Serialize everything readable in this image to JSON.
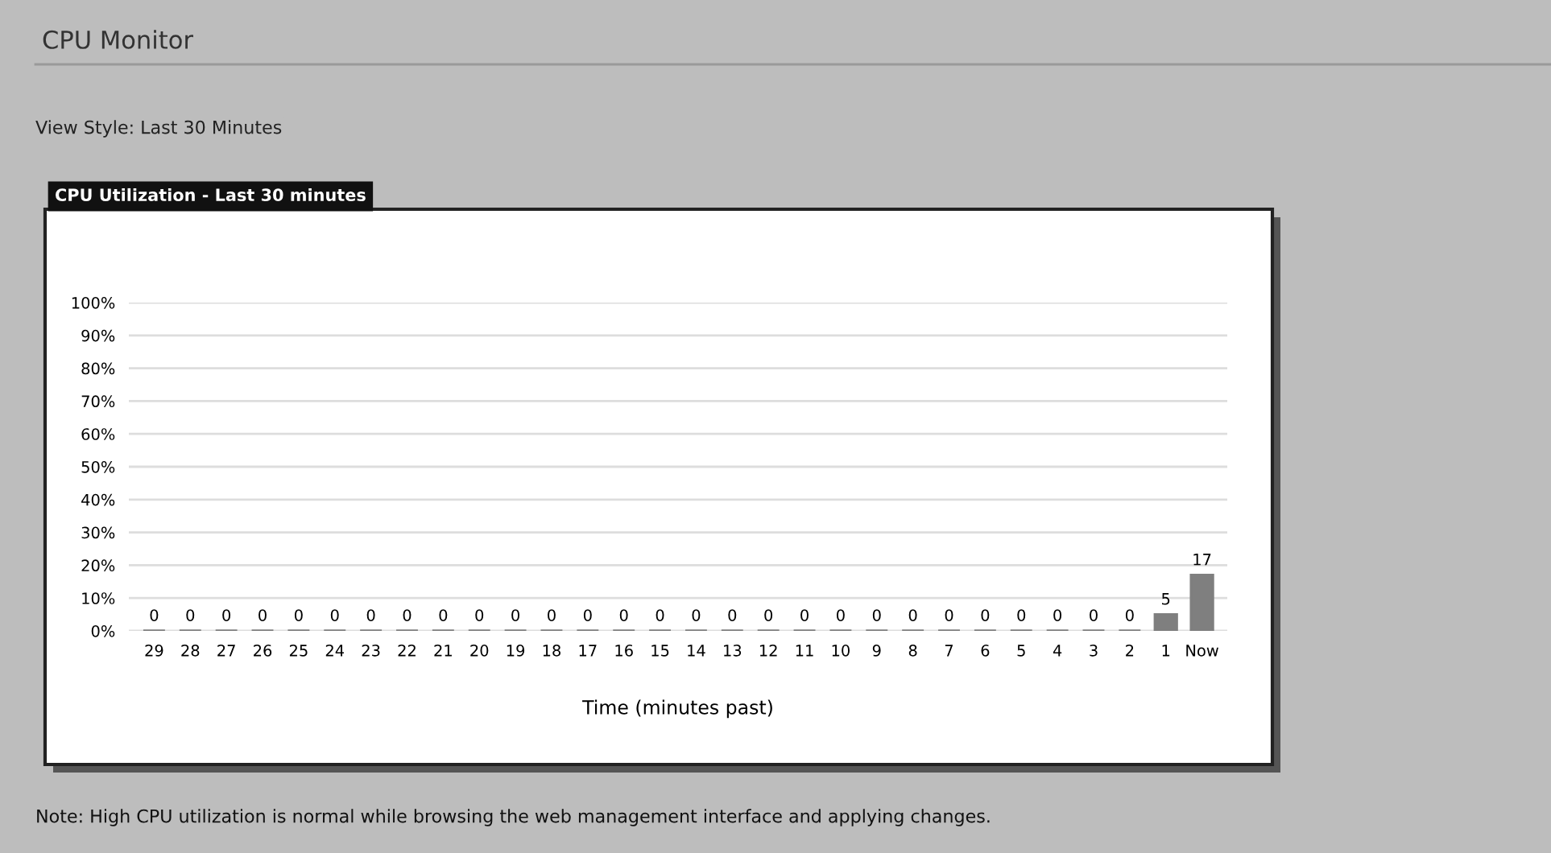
{
  "chart_data": {
    "type": "bar",
    "title": "CPU Monitor",
    "subtitle": "CPU Utilization - Last 30 minutes",
    "xlabel": "Time (minutes past)",
    "annotations": [
      "View Style: Last 30 Minutes",
      "Note: High CPU utilization is normal while browsing the web management interface and applying changes."
    ],
    "categories": [
      "29",
      "28",
      "27",
      "26",
      "25",
      "24",
      "23",
      "22",
      "21",
      "20",
      "19",
      "18",
      "17",
      "16",
      "15",
      "14",
      "13",
      "12",
      "11",
      "10",
      "9",
      "8",
      "7",
      "6",
      "5",
      "4",
      "3",
      "2",
      "1",
      "Now"
    ],
    "values": [
      0,
      0,
      0,
      0,
      0,
      0,
      0,
      0,
      0,
      0,
      0,
      0,
      0,
      0,
      0,
      0,
      0,
      0,
      0,
      0,
      0,
      0,
      0,
      0,
      0,
      0,
      0,
      0,
      5,
      17
    ],
    "color": "#7f7f7f",
    "ylim": [
      0,
      100
    ],
    "yticks": [
      {
        "value": 0,
        "label": "0%"
      },
      {
        "value": 10,
        "label": "10%"
      },
      {
        "value": 20,
        "label": "20%"
      },
      {
        "value": 30,
        "label": "30%"
      },
      {
        "value": 40,
        "label": "40%"
      },
      {
        "value": 50,
        "label": "50%"
      },
      {
        "value": 60,
        "label": "60%"
      },
      {
        "value": 70,
        "label": "70%"
      },
      {
        "value": 80,
        "label": "80%"
      },
      {
        "value": 90,
        "label": "90%"
      },
      {
        "value": 100,
        "label": "100%"
      }
    ],
    "grid": "y",
    "data_labels": true
  }
}
